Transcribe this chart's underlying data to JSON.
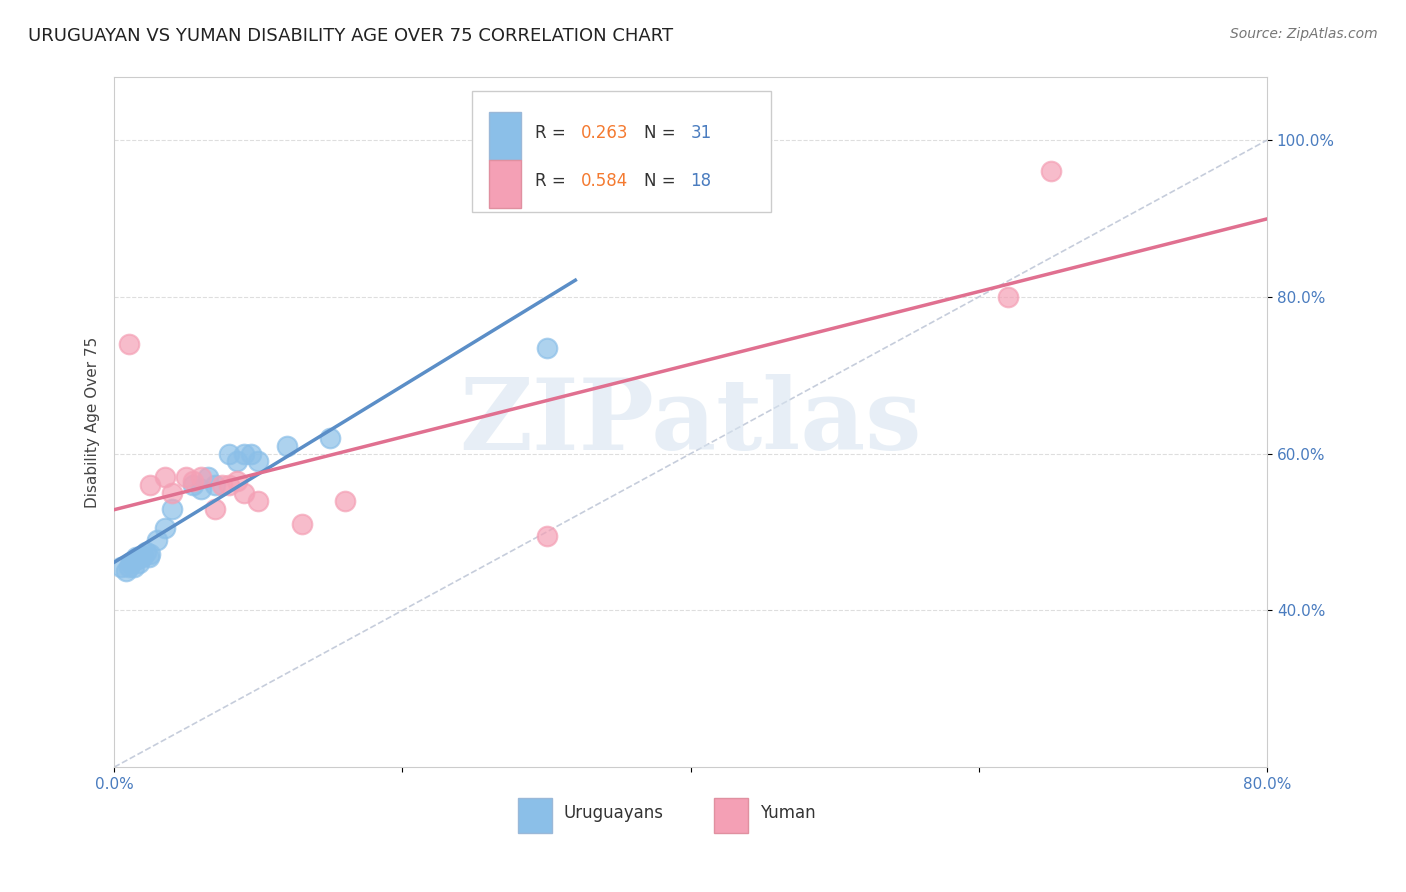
{
  "title": "URUGUAYAN VS YUMAN DISABILITY AGE OVER 75 CORRELATION CHART",
  "source": "Source: ZipAtlas.com",
  "ylabel": "Disability Age Over 75",
  "watermark": "ZIPatlas",
  "xlim": [
    0.0,
    0.8
  ],
  "ylim": [
    0.2,
    1.08
  ],
  "xticks": [
    0.0,
    0.2,
    0.4,
    0.6,
    0.8
  ],
  "xticklabels": [
    "0.0%",
    "",
    "",
    "",
    "80.0%"
  ],
  "yticks": [
    0.4,
    0.6,
    0.8,
    1.0
  ],
  "yticklabels": [
    "40.0%",
    "60.0%",
    "80.0%",
    "100.0%"
  ],
  "uruguayan_color": "#8bbfe8",
  "yuman_color": "#f4a0b5",
  "uruguayan_line_color": "#5b8ec7",
  "yuman_line_color": "#e07090",
  "diag_line_color": "#c0c8d8",
  "legend_R_uruguayan": "0.263",
  "legend_N_uruguayan": "31",
  "legend_R_yuman": "0.584",
  "legend_N_yuman": "18",
  "R_color": "#f47a30",
  "N_color": "#4a7cbf",
  "tick_color": "#4a7cbf",
  "uruguayan_x": [
    0.005,
    0.008,
    0.01,
    0.012,
    0.012,
    0.014,
    0.015,
    0.015,
    0.016,
    0.017,
    0.018,
    0.019,
    0.02,
    0.022,
    0.024,
    0.025,
    0.03,
    0.035,
    0.04,
    0.055,
    0.06,
    0.065,
    0.07,
    0.08,
    0.085,
    0.09,
    0.095,
    0.1,
    0.12,
    0.15,
    0.3
  ],
  "uruguayan_y": [
    0.455,
    0.45,
    0.455,
    0.46,
    0.462,
    0.455,
    0.465,
    0.468,
    0.465,
    0.46,
    0.468,
    0.47,
    0.47,
    0.475,
    0.468,
    0.472,
    0.49,
    0.505,
    0.53,
    0.56,
    0.555,
    0.57,
    0.56,
    0.6,
    0.59,
    0.6,
    0.6,
    0.59,
    0.61,
    0.62,
    0.735
  ],
  "yuman_x": [
    0.01,
    0.025,
    0.035,
    0.04,
    0.05,
    0.055,
    0.06,
    0.07,
    0.075,
    0.08,
    0.085,
    0.09,
    0.1,
    0.13,
    0.16,
    0.3,
    0.62,
    0.65
  ],
  "yuman_y": [
    0.74,
    0.56,
    0.57,
    0.55,
    0.57,
    0.565,
    0.57,
    0.53,
    0.56,
    0.56,
    0.565,
    0.55,
    0.54,
    0.51,
    0.54,
    0.495,
    0.8,
    0.96
  ],
  "grid_color": "#d0d0d0",
  "background_color": "#ffffff",
  "title_fontsize": 13,
  "axis_label_fontsize": 11,
  "tick_fontsize": 11,
  "legend_fontsize": 12,
  "source_fontsize": 10
}
